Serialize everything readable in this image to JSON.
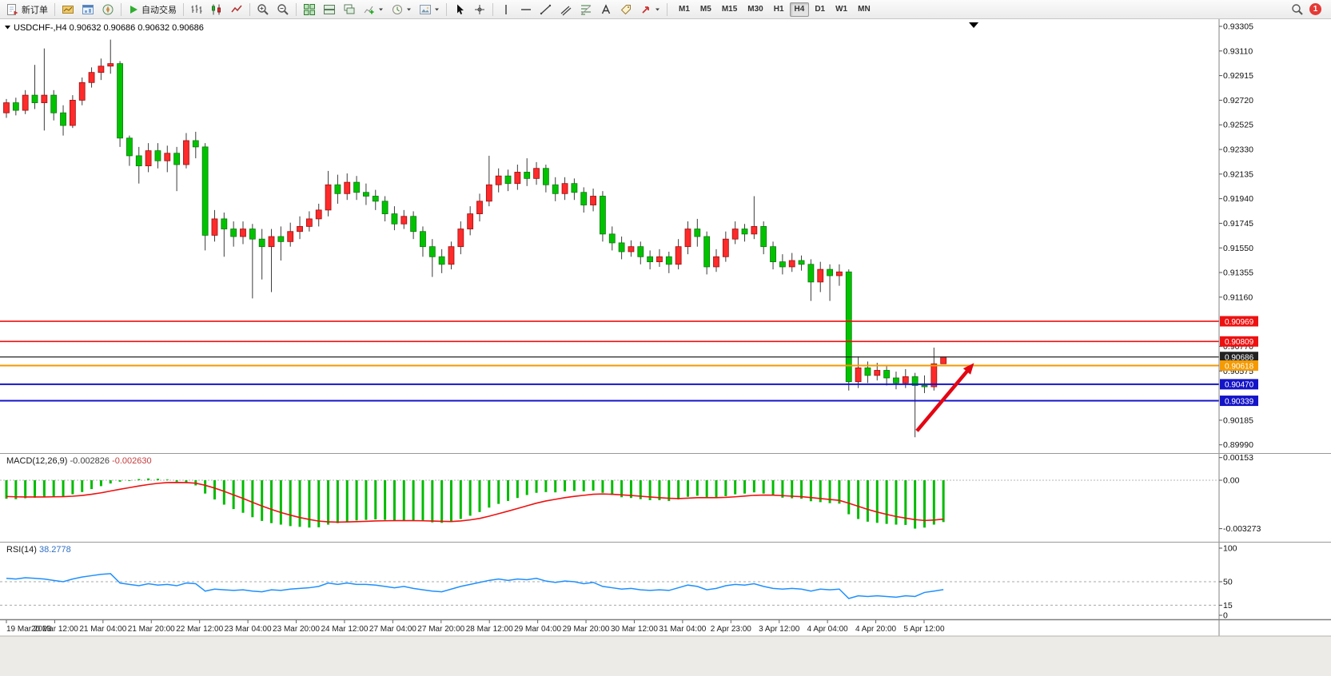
{
  "toolbar": {
    "new_order_label": "新订单",
    "autotrading_label": "自动交易",
    "timeframes": [
      "M1",
      "M5",
      "M15",
      "M30",
      "H1",
      "H4",
      "D1",
      "W1",
      "MN"
    ],
    "active_timeframe": "H4",
    "notification_count": "1",
    "icons": [
      "new-order",
      "new-chart",
      "market-watch",
      "navigator",
      "autotrading-play",
      "bar-chart",
      "candlestick-chart",
      "line-chart",
      "zoom-in",
      "zoom-out",
      "tile-windows",
      "arrange-windows",
      "cascade-windows",
      "indicators",
      "periods",
      "templates",
      "cursor",
      "crosshair",
      "vertical-line",
      "horizontal-line",
      "trendline",
      "equidistant-channel",
      "fibonacci",
      "text",
      "text-label",
      "arrow-shapes",
      "search",
      "notification"
    ]
  },
  "chart_window": {
    "symbol_header": "USDCHF-,H4",
    "ohlc_header": "0.90632 0.90686 0.90632 0.90686"
  },
  "chart_data": {
    "type": "candlestick",
    "symbol": "USDCHF-",
    "period": "H4",
    "title": "USDCHF-,H4",
    "current_ohlc": {
      "open": 0.90632,
      "high": 0.90686,
      "low": 0.90632,
      "close": 0.90686
    },
    "ylim": [
      0.89925,
      0.93349
    ],
    "colors": {
      "bull": "#ff2a2a",
      "bull_border": "#9c0f0f",
      "bear": "#00c300",
      "bear_border": "#0a7a0a",
      "wick": "#3c3c3c",
      "macd_histogram": "#00bb00",
      "macd_signal": "#ee1111",
      "rsi_line": "#1e90ff",
      "arrow": "#e30613"
    },
    "price_axis": {
      "labels": [
        "0.93305",
        "0.93110",
        "0.92915",
        "0.92720",
        "0.92525",
        "0.92330",
        "0.92135",
        "0.91940",
        "0.91745",
        "0.91550",
        "0.91355",
        "0.91160",
        "0.90770",
        "0.90575",
        "0.90185",
        "0.89990"
      ]
    },
    "hlines": [
      {
        "price": 0.90969,
        "label": "0.90969",
        "color": "#ee1111",
        "width": 1.6
      },
      {
        "price": 0.90809,
        "label": "0.90809",
        "color": "#ee1111",
        "width": 1.6
      },
      {
        "price": 0.90686,
        "label": "0.90686",
        "color": "#222222",
        "width": 1.2
      },
      {
        "price": 0.90618,
        "label": "0.90618",
        "color": "#f59a00",
        "width": 2
      },
      {
        "price": 0.9047,
        "label": "0.90470",
        "color": "#1414c8",
        "width": 2
      },
      {
        "price": 0.90339,
        "label": "0.90339",
        "color": "#1414c8",
        "width": 2
      }
    ],
    "time_labels": [
      "19 Mar 2023",
      "20 Mar 12:00",
      "21 Mar 04:00",
      "21 Mar 20:00",
      "22 Mar 12:00",
      "23 Mar 04:00",
      "23 Mar 20:00",
      "24 Mar 12:00",
      "27 Mar 04:00",
      "27 Mar 20:00",
      "28 Mar 12:00",
      "29 Mar 04:00",
      "29 Mar 20:00",
      "30 Mar 12:00",
      "31 Mar 04:00",
      "2 Apr 23:00",
      "3 Apr 12:00",
      "4 Apr 04:00",
      "4 Apr 20:00",
      "5 Apr 12:00"
    ],
    "candles": [
      [
        0.9262,
        0.9273,
        0.9258,
        0.927
      ],
      [
        0.927,
        0.9274,
        0.926,
        0.9264
      ],
      [
        0.9264,
        0.928,
        0.9261,
        0.9276
      ],
      [
        0.9276,
        0.93,
        0.9265,
        0.927
      ],
      [
        0.927,
        0.9313,
        0.9248,
        0.9276
      ],
      [
        0.9276,
        0.928,
        0.9256,
        0.9262
      ],
      [
        0.9262,
        0.9268,
        0.9244,
        0.9252
      ],
      [
        0.9252,
        0.9276,
        0.925,
        0.9272
      ],
      [
        0.9272,
        0.929,
        0.9268,
        0.9286
      ],
      [
        0.9286,
        0.9298,
        0.9282,
        0.9294
      ],
      [
        0.9294,
        0.9305,
        0.9288,
        0.9299
      ],
      [
        0.9299,
        0.932,
        0.9293,
        0.9301
      ],
      [
        0.9301,
        0.9303,
        0.9235,
        0.9242
      ],
      [
        0.9242,
        0.9244,
        0.922,
        0.9228
      ],
      [
        0.9228,
        0.9235,
        0.9206,
        0.922
      ],
      [
        0.922,
        0.9238,
        0.9215,
        0.9232
      ],
      [
        0.9232,
        0.9238,
        0.9218,
        0.9224
      ],
      [
        0.9224,
        0.9236,
        0.9215,
        0.923
      ],
      [
        0.923,
        0.9235,
        0.92,
        0.9221
      ],
      [
        0.9221,
        0.9246,
        0.9218,
        0.924
      ],
      [
        0.924,
        0.9247,
        0.9226,
        0.9235
      ],
      [
        0.9235,
        0.9238,
        0.9153,
        0.9165
      ],
      [
        0.9165,
        0.9185,
        0.916,
        0.9178
      ],
      [
        0.9178,
        0.9183,
        0.9148,
        0.917
      ],
      [
        0.917,
        0.9176,
        0.9156,
        0.9164
      ],
      [
        0.9164,
        0.9176,
        0.9158,
        0.917
      ],
      [
        0.917,
        0.9174,
        0.9115,
        0.9162
      ],
      [
        0.9162,
        0.917,
        0.913,
        0.9156
      ],
      [
        0.9156,
        0.917,
        0.912,
        0.9164
      ],
      [
        0.9164,
        0.9172,
        0.9145,
        0.916
      ],
      [
        0.916,
        0.9175,
        0.9156,
        0.9168
      ],
      [
        0.9168,
        0.918,
        0.9162,
        0.9172
      ],
      [
        0.9172,
        0.9184,
        0.9168,
        0.9178
      ],
      [
        0.9178,
        0.919,
        0.9172,
        0.9185
      ],
      [
        0.9185,
        0.9216,
        0.918,
        0.9205
      ],
      [
        0.9205,
        0.9213,
        0.919,
        0.9198
      ],
      [
        0.9198,
        0.9214,
        0.9193,
        0.9207
      ],
      [
        0.9207,
        0.9212,
        0.9193,
        0.9199
      ],
      [
        0.9199,
        0.9206,
        0.9189,
        0.9196
      ],
      [
        0.9196,
        0.9201,
        0.9185,
        0.9192
      ],
      [
        0.9192,
        0.9196,
        0.9176,
        0.9182
      ],
      [
        0.9182,
        0.9188,
        0.9169,
        0.9174
      ],
      [
        0.9174,
        0.9185,
        0.917,
        0.918
      ],
      [
        0.918,
        0.9184,
        0.9162,
        0.9168
      ],
      [
        0.9168,
        0.9172,
        0.9148,
        0.9156
      ],
      [
        0.9156,
        0.9162,
        0.9132,
        0.9148
      ],
      [
        0.9148,
        0.9154,
        0.9135,
        0.9142
      ],
      [
        0.9142,
        0.916,
        0.9138,
        0.9156
      ],
      [
        0.9156,
        0.9176,
        0.915,
        0.917
      ],
      [
        0.917,
        0.9188,
        0.9165,
        0.9182
      ],
      [
        0.9182,
        0.9198,
        0.9176,
        0.9192
      ],
      [
        0.9192,
        0.9228,
        0.9188,
        0.9205
      ],
      [
        0.9205,
        0.9218,
        0.9199,
        0.9212
      ],
      [
        0.9212,
        0.9217,
        0.92,
        0.9206
      ],
      [
        0.9206,
        0.9221,
        0.9201,
        0.9215
      ],
      [
        0.9215,
        0.9226,
        0.9204,
        0.921
      ],
      [
        0.921,
        0.9223,
        0.9205,
        0.9218
      ],
      [
        0.9218,
        0.9221,
        0.9199,
        0.9205
      ],
      [
        0.9205,
        0.9211,
        0.9192,
        0.9198
      ],
      [
        0.9198,
        0.9211,
        0.9193,
        0.9206
      ],
      [
        0.9206,
        0.921,
        0.9193,
        0.9199
      ],
      [
        0.9199,
        0.9203,
        0.9183,
        0.9189
      ],
      [
        0.9189,
        0.9202,
        0.9184,
        0.9196
      ],
      [
        0.9196,
        0.92,
        0.916,
        0.9166
      ],
      [
        0.9166,
        0.9172,
        0.9153,
        0.9159
      ],
      [
        0.9159,
        0.9164,
        0.9146,
        0.9152
      ],
      [
        0.9152,
        0.9161,
        0.9148,
        0.9156
      ],
      [
        0.9156,
        0.916,
        0.9142,
        0.9148
      ],
      [
        0.9148,
        0.9153,
        0.9138,
        0.9144
      ],
      [
        0.9144,
        0.9154,
        0.914,
        0.9148
      ],
      [
        0.9148,
        0.9152,
        0.9135,
        0.9142
      ],
      [
        0.9142,
        0.9162,
        0.9138,
        0.9156
      ],
      [
        0.9156,
        0.9176,
        0.915,
        0.917
      ],
      [
        0.917,
        0.9178,
        0.9156,
        0.9164
      ],
      [
        0.9164,
        0.9168,
        0.9134,
        0.914
      ],
      [
        0.914,
        0.9154,
        0.9136,
        0.9148
      ],
      [
        0.9148,
        0.9168,
        0.9144,
        0.9162
      ],
      [
        0.9162,
        0.9176,
        0.9158,
        0.917
      ],
      [
        0.917,
        0.9174,
        0.916,
        0.9166
      ],
      [
        0.9166,
        0.9196,
        0.9162,
        0.9172
      ],
      [
        0.9172,
        0.9176,
        0.915,
        0.9156
      ],
      [
        0.9156,
        0.916,
        0.9138,
        0.9144
      ],
      [
        0.9144,
        0.915,
        0.9134,
        0.914
      ],
      [
        0.914,
        0.9151,
        0.9136,
        0.9145
      ],
      [
        0.9145,
        0.9149,
        0.9137,
        0.9142
      ],
      [
        0.9142,
        0.9146,
        0.9113,
        0.9128
      ],
      [
        0.9128,
        0.9144,
        0.912,
        0.9138
      ],
      [
        0.9138,
        0.9142,
        0.9113,
        0.9133
      ],
      [
        0.9133,
        0.9142,
        0.9125,
        0.9136
      ],
      [
        0.9136,
        0.9138,
        0.9042,
        0.9049
      ],
      [
        0.9049,
        0.9069,
        0.9044,
        0.906
      ],
      [
        0.906,
        0.9065,
        0.9048,
        0.9054
      ],
      [
        0.9054,
        0.9064,
        0.905,
        0.9058
      ],
      [
        0.9058,
        0.9062,
        0.9046,
        0.9052
      ],
      [
        0.9052,
        0.9057,
        0.9043,
        0.9048
      ],
      [
        0.9048,
        0.9059,
        0.9044,
        0.9053
      ],
      [
        0.9053,
        0.9056,
        0.9005,
        0.9046
      ],
      [
        0.9046,
        0.9054,
        0.904,
        0.9045
      ],
      [
        0.9045,
        0.9076,
        0.9042,
        0.90632
      ],
      [
        0.90632,
        0.90686,
        0.90632,
        0.90686
      ]
    ],
    "macd": {
      "title": "MACD(12,26,9)",
      "main_value": "-0.002826",
      "signal_value": "-0.002630",
      "axis": [
        {
          "v": 0.00153,
          "label": "0.00153"
        },
        {
          "v": 0,
          "label": "0.00"
        },
        {
          "v": -0.003273,
          "label": "-0.003273"
        }
      ],
      "histogram": [
        -0.00125,
        -0.00128,
        -0.00122,
        -0.00118,
        -0.00115,
        -0.00112,
        -0.00108,
        -0.00095,
        -0.0008,
        -0.0006,
        -0.0004,
        -0.00022,
        -0.0001,
        -5e-05,
        8e-05,
        0.00012,
        0.0001,
        5e-05,
        -0.0001,
        -0.0002,
        -0.00035,
        -0.0009,
        -0.0013,
        -0.00165,
        -0.00195,
        -0.0022,
        -0.0025,
        -0.00275,
        -0.0029,
        -0.003,
        -0.0031,
        -0.00315,
        -0.0032,
        -0.00318,
        -0.003,
        -0.0029,
        -0.0028,
        -0.00272,
        -0.00268,
        -0.00265,
        -0.00268,
        -0.00272,
        -0.0027,
        -0.00272,
        -0.00278,
        -0.00285,
        -0.00288,
        -0.0028,
        -0.00262,
        -0.0024,
        -0.00215,
        -0.00185,
        -0.0016,
        -0.0014,
        -0.0012,
        -0.001,
        -0.00085,
        -0.0008,
        -0.00082,
        -0.00075,
        -0.00072,
        -0.00075,
        -0.0007,
        -0.00085,
        -0.001,
        -0.00115,
        -0.0012,
        -0.00128,
        -0.00135,
        -0.00135,
        -0.0014,
        -0.0013,
        -0.00112,
        -0.00105,
        -0.00118,
        -0.0012,
        -0.00108,
        -0.00095,
        -0.0009,
        -0.00082,
        -0.0009,
        -0.00105,
        -0.00118,
        -0.00122,
        -0.00125,
        -0.00142,
        -0.00148,
        -0.00155,
        -0.00158,
        -0.0023,
        -0.00262,
        -0.0028,
        -0.00288,
        -0.00295,
        -0.003,
        -0.00302,
        -0.00327,
        -0.0032,
        -0.003,
        -0.002826
      ],
      "signal": [
        -0.0011,
        -0.00112,
        -0.00113,
        -0.00113,
        -0.00113,
        -0.00112,
        -0.00111,
        -0.00108,
        -0.00103,
        -0.00095,
        -0.00085,
        -0.00073,
        -0.00061,
        -0.0005,
        -0.00039,
        -0.00029,
        -0.00021,
        -0.00016,
        -0.00015,
        -0.00016,
        -0.0002,
        -0.00034,
        -0.00053,
        -0.00075,
        -0.00099,
        -0.00123,
        -0.00149,
        -0.00174,
        -0.00197,
        -0.00218,
        -0.00236,
        -0.00252,
        -0.00265,
        -0.00276,
        -0.00281,
        -0.00283,
        -0.00282,
        -0.0028,
        -0.00278,
        -0.00275,
        -0.00274,
        -0.00273,
        -0.00273,
        -0.00273,
        -0.00274,
        -0.00276,
        -0.00278,
        -0.00279,
        -0.00275,
        -0.00268,
        -0.00258,
        -0.00243,
        -0.00226,
        -0.00209,
        -0.00191,
        -0.00173,
        -0.00155,
        -0.0014,
        -0.00129,
        -0.00118,
        -0.00109,
        -0.00102,
        -0.00095,
        -0.00093,
        -0.00095,
        -0.00099,
        -0.00103,
        -0.00108,
        -0.00113,
        -0.00118,
        -0.00122,
        -0.00124,
        -0.00121,
        -0.00118,
        -0.00118,
        -0.00118,
        -0.00116,
        -0.00112,
        -0.00107,
        -0.00102,
        -0.001,
        -0.00101,
        -0.00104,
        -0.00108,
        -0.00111,
        -0.00117,
        -0.00124,
        -0.0013,
        -0.00136,
        -0.00155,
        -0.00176,
        -0.00197,
        -0.00215,
        -0.00231,
        -0.00245,
        -0.00256,
        -0.00266,
        -0.00272,
        -0.00269,
        -0.00263
      ]
    },
    "rsi": {
      "title": "RSI(14)",
      "value": "38.2778",
      "axis": [
        {
          "v": 100,
          "label": "100"
        },
        {
          "v": 50,
          "label": "50"
        },
        {
          "v": 15,
          "label": "15"
        },
        {
          "v": 0,
          "label": "0"
        }
      ],
      "levels": [
        50,
        15
      ],
      "values": [
        55,
        54,
        56,
        55,
        54,
        52,
        50,
        54,
        57,
        59,
        61,
        62,
        48,
        46,
        44,
        47,
        45,
        46,
        44,
        48,
        47,
        36,
        39,
        38,
        37,
        38,
        36,
        35,
        38,
        37,
        39,
        40,
        41,
        43,
        48,
        46,
        48,
        46,
        46,
        45,
        43,
        41,
        43,
        40,
        38,
        36,
        35,
        39,
        43,
        46,
        49,
        52,
        54,
        52,
        54,
        53,
        55,
        51,
        49,
        51,
        50,
        47,
        49,
        43,
        41,
        39,
        40,
        38,
        37,
        38,
        37,
        41,
        45,
        43,
        38,
        40,
        44,
        46,
        45,
        47,
        43,
        40,
        39,
        40,
        39,
        36,
        39,
        38,
        39,
        25,
        29,
        28,
        29,
        28,
        27,
        29,
        28,
        34,
        36,
        38.2778
      ]
    },
    "annotations": {
      "arrow": {
        "from_candle": 96.2,
        "from_price": 0.901,
        "to_candle": 101.8,
        "to_price": 0.906,
        "color": "#e30613"
      },
      "shift_marker_candle": 102.2
    }
  }
}
